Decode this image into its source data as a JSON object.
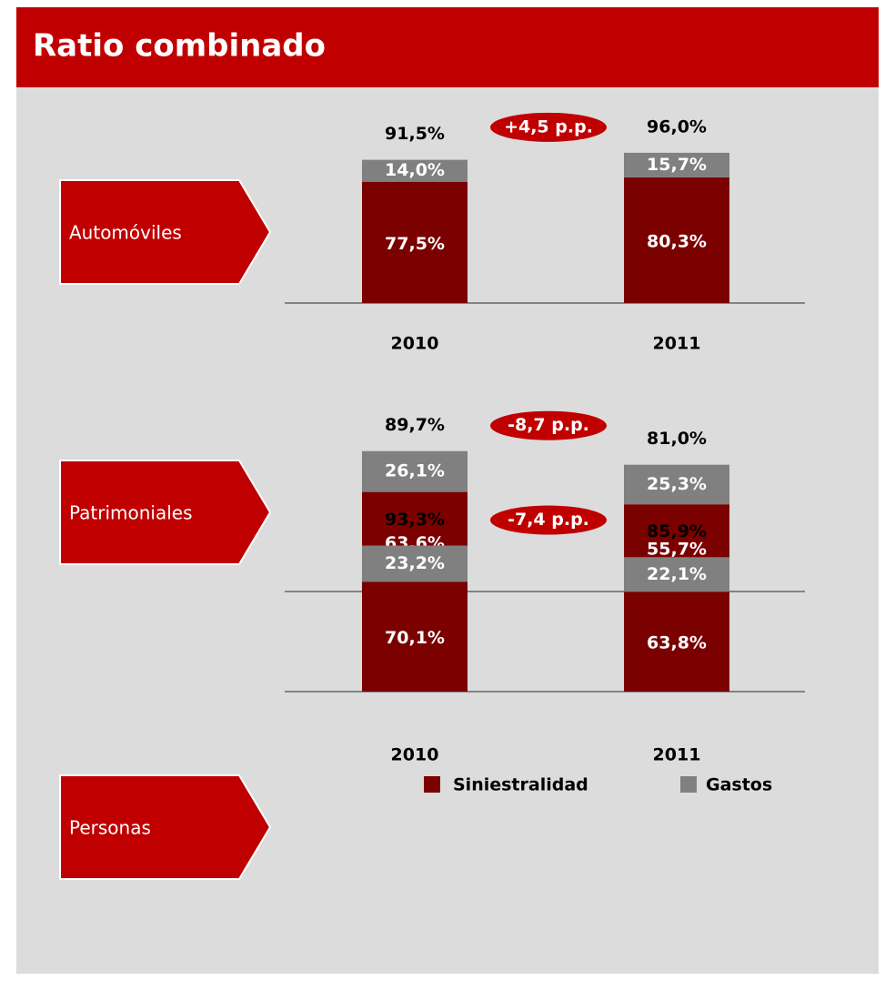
{
  "title": "Ratio combinado",
  "chart_data": [
    {
      "type": "bar",
      "stacked": true,
      "label": "Automóviles",
      "categories": [
        "2010",
        "2011"
      ],
      "series": [
        {
          "name": "Siniestralidad",
          "color": "#7b0000",
          "values": [
            77.5,
            80.3
          ],
          "value_labels": [
            "77,5%",
            "80,3%"
          ]
        },
        {
          "name": "Gastos",
          "color": "#808080",
          "values": [
            14.0,
            15.7
          ],
          "value_labels": [
            "14,0%",
            "15,7%"
          ]
        }
      ],
      "totals": [
        91.5,
        96.0
      ],
      "total_labels": [
        "91,5%",
        "96,0%"
      ],
      "annotation": "+4,5 p.p."
    },
    {
      "type": "bar",
      "stacked": true,
      "label": "Patrimoniales",
      "categories": [
        "2010",
        "2011"
      ],
      "series": [
        {
          "name": "Siniestralidad",
          "color": "#7b0000",
          "values": [
            63.6,
            55.7
          ],
          "value_labels": [
            "63,6%",
            "55,7%"
          ]
        },
        {
          "name": "Gastos",
          "color": "#808080",
          "values": [
            26.1,
            25.3
          ],
          "value_labels": [
            "26,1%",
            "25,3%"
          ]
        }
      ],
      "totals": [
        89.7,
        81.0
      ],
      "total_labels": [
        "89,7%",
        "81,0%"
      ],
      "annotation": "-8,7 p.p."
    },
    {
      "type": "bar",
      "stacked": true,
      "label": "Personas",
      "categories": [
        "2010",
        "2011"
      ],
      "series": [
        {
          "name": "Siniestralidad",
          "color": "#7b0000",
          "values": [
            70.1,
            63.8
          ],
          "value_labels": [
            "70,1%",
            "63,8%"
          ]
        },
        {
          "name": "Gastos",
          "color": "#808080",
          "values": [
            23.2,
            22.1
          ],
          "value_labels": [
            "23,2%",
            "22,1%"
          ]
        }
      ],
      "totals": [
        93.3,
        85.9
      ],
      "total_labels": [
        "93,3%",
        "85,9%"
      ],
      "annotation": "-7,4 p.p."
    }
  ]
}
